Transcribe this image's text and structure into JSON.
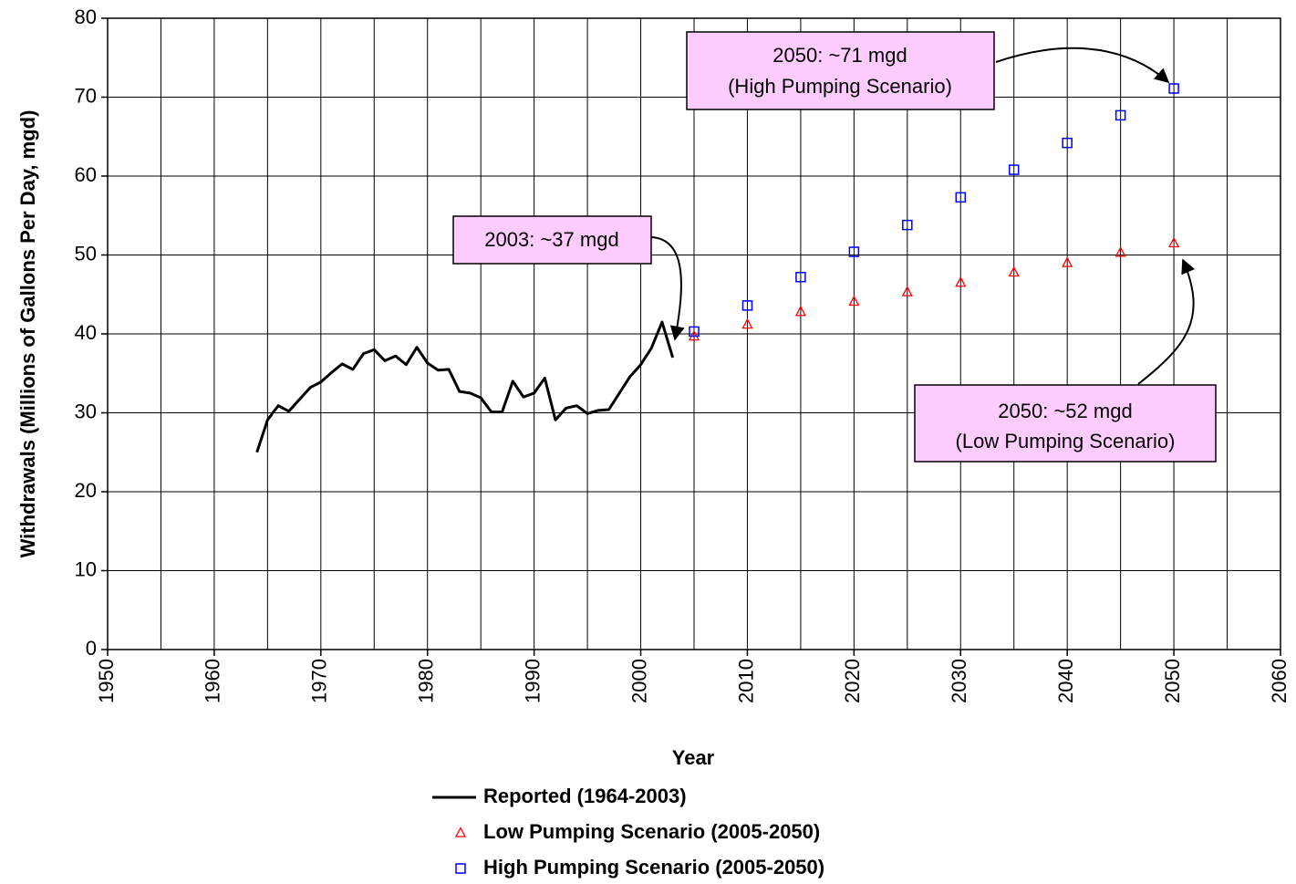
{
  "chart_data": {
    "type": "line",
    "xlabel": "Year",
    "ylabel": "Withdrawals (Millions of Gallons Per Day, mgd)",
    "xlim": [
      1950,
      2060
    ],
    "xticks": [
      1950,
      1960,
      1970,
      1980,
      1990,
      2000,
      2010,
      2020,
      2030,
      2040,
      2050,
      2060
    ],
    "xgrid": [
      1950,
      1955,
      1960,
      1965,
      1970,
      1975,
      1980,
      1985,
      1990,
      1995,
      2000,
      2005,
      2010,
      2015,
      2020,
      2025,
      2030,
      2035,
      2040,
      2045,
      2050,
      2055,
      2060
    ],
    "ylim": [
      0,
      80
    ],
    "yticks": [
      0,
      10,
      20,
      30,
      40,
      50,
      60,
      70,
      80
    ],
    "grid": true,
    "legend": "bottom",
    "series": [
      {
        "name": "Reported (1964-2003)",
        "color": "#000000",
        "marker": "line",
        "x": [
          1964,
          1965,
          1966,
          1967,
          1968,
          1969,
          1970,
          1971,
          1972,
          1973,
          1974,
          1975,
          1976,
          1977,
          1978,
          1979,
          1980,
          1981,
          1982,
          1983,
          1984,
          1985,
          1986,
          1987,
          1988,
          1989,
          1990,
          1991,
          1992,
          1993,
          1994,
          1995,
          1996,
          1997,
          1998,
          1999,
          2000,
          2001,
          2002,
          2003
        ],
        "values": [
          25.0,
          29.1,
          30.9,
          30.2,
          31.7,
          33.2,
          33.9,
          35.1,
          36.2,
          35.5,
          37.5,
          38.0,
          36.6,
          37.2,
          36.1,
          38.3,
          36.3,
          35.4,
          35.5,
          32.7,
          32.5,
          31.9,
          30.1,
          30.1,
          34.0,
          32.0,
          32.5,
          34.4,
          29.1,
          30.6,
          30.9,
          29.9,
          30.3,
          30.4,
          32.5,
          34.6,
          36.1,
          38.2,
          41.5,
          37.0
        ]
      },
      {
        "name": "Low Pumping Scenario (2005-2050)",
        "color": "#ff0000",
        "marker": "triangle",
        "x": [
          2005,
          2010,
          2015,
          2020,
          2025,
          2030,
          2035,
          2040,
          2045,
          2050
        ],
        "values": [
          39.7,
          41.2,
          42.8,
          44.1,
          45.3,
          46.5,
          47.8,
          49.0,
          50.3,
          51.5
        ]
      },
      {
        "name": "High Pumping Scenario (2005-2050)",
        "color": "#0000ff",
        "marker": "square",
        "x": [
          2005,
          2010,
          2015,
          2020,
          2025,
          2030,
          2035,
          2040,
          2045,
          2050
        ],
        "values": [
          40.3,
          43.6,
          47.2,
          50.4,
          53.8,
          57.3,
          60.8,
          64.2,
          67.7,
          71.1
        ]
      }
    ],
    "annotations": [
      {
        "lines": [
          "2050: ~71 mgd",
          "(High Pumping Scenario)"
        ]
      },
      {
        "lines": [
          "2003: ~37 mgd"
        ]
      },
      {
        "lines": [
          "2050: ~52 mgd",
          "(Low Pumping Scenario)"
        ]
      }
    ]
  }
}
